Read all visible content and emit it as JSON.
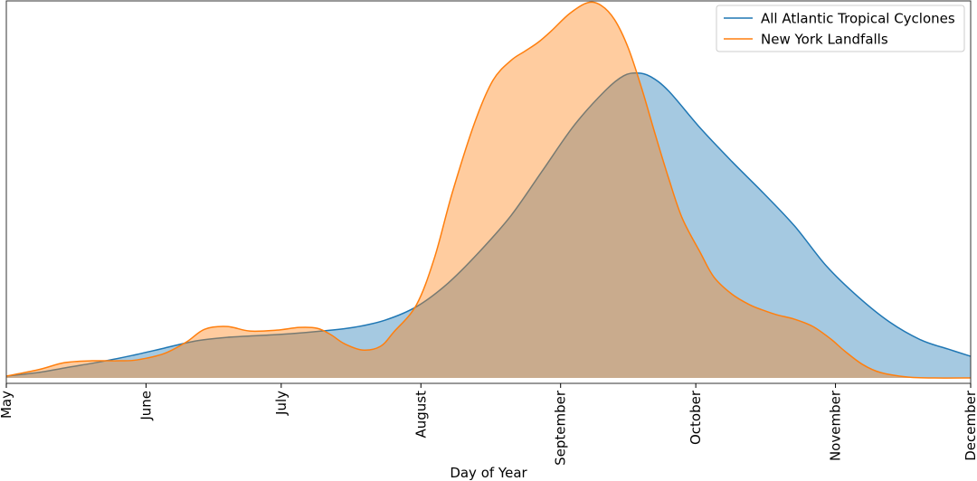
{
  "chart_data": {
    "type": "area",
    "title": "",
    "xlabel": "Day of Year",
    "ylabel": "",
    "xlim": [
      121,
      335
    ],
    "ylim": [
      -0.0006,
      0.0418
    ],
    "grid": false,
    "legend": "top-right",
    "x_ticks": [
      {
        "label": "May",
        "x": 121
      },
      {
        "label": "June",
        "x": 152
      },
      {
        "label": "July",
        "x": 182
      },
      {
        "label": "August",
        "x": 213
      },
      {
        "label": "September",
        "x": 244
      },
      {
        "label": "October",
        "x": 274
      },
      {
        "label": "November",
        "x": 305
      },
      {
        "label": "December",
        "x": 335
      }
    ],
    "series": [
      {
        "name": "All Atlantic Tropical Cyclones",
        "color": "#1f77b4",
        "fill": "#1f77b4",
        "fill_opacity": 0.4,
        "x": [
          121,
          128,
          135,
          142,
          149,
          156,
          163,
          170,
          177,
          184,
          191,
          198,
          205,
          212,
          219,
          226,
          233,
          240,
          247,
          254,
          258,
          261,
          264,
          268,
          275,
          282,
          289,
          296,
          303,
          310,
          317,
          324,
          330,
          335
        ],
        "y": [
          0.0002,
          0.0006,
          0.0012,
          0.0018,
          0.0025,
          0.0033,
          0.0041,
          0.0045,
          0.0047,
          0.0049,
          0.0052,
          0.0056,
          0.0064,
          0.0079,
          0.0105,
          0.014,
          0.018,
          0.023,
          0.028,
          0.0319,
          0.0335,
          0.0338,
          0.0334,
          0.0318,
          0.0277,
          0.024,
          0.0205,
          0.0168,
          0.0124,
          0.009,
          0.0062,
          0.0042,
          0.0032,
          0.0024
        ]
      },
      {
        "name": "New York Landfalls",
        "color": "#ff7f0e",
        "fill": "#ff7f0e",
        "fill_opacity": 0.4,
        "x": [
          121,
          128,
          134,
          140,
          146,
          150,
          156,
          161,
          165,
          170,
          175,
          181,
          186,
          190,
          193,
          196,
          200,
          204,
          207,
          212,
          216,
          220,
          225,
          229,
          233,
          236,
          239,
          242,
          246,
          250,
          253,
          256,
          259,
          262,
          265,
          268,
          271,
          275,
          278,
          282,
          286,
          289,
          292,
          296,
          300,
          304,
          307,
          311,
          315,
          321,
          327,
          335
        ],
        "y": [
          0.0002,
          0.0009,
          0.0017,
          0.0019,
          0.0019,
          0.002,
          0.0027,
          0.004,
          0.0054,
          0.0057,
          0.0052,
          0.0053,
          0.0056,
          0.0055,
          0.0048,
          0.0038,
          0.0031,
          0.0035,
          0.0051,
          0.0081,
          0.0133,
          0.0206,
          0.0284,
          0.033,
          0.0352,
          0.0362,
          0.0372,
          0.0385,
          0.0404,
          0.0416,
          0.0413,
          0.0397,
          0.0366,
          0.0321,
          0.027,
          0.0221,
          0.0177,
          0.0139,
          0.0112,
          0.0093,
          0.0081,
          0.0075,
          0.007,
          0.0065,
          0.0057,
          0.0043,
          0.003,
          0.0015,
          0.0006,
          0.0001,
          0.0,
          0.0
        ]
      }
    ]
  }
}
